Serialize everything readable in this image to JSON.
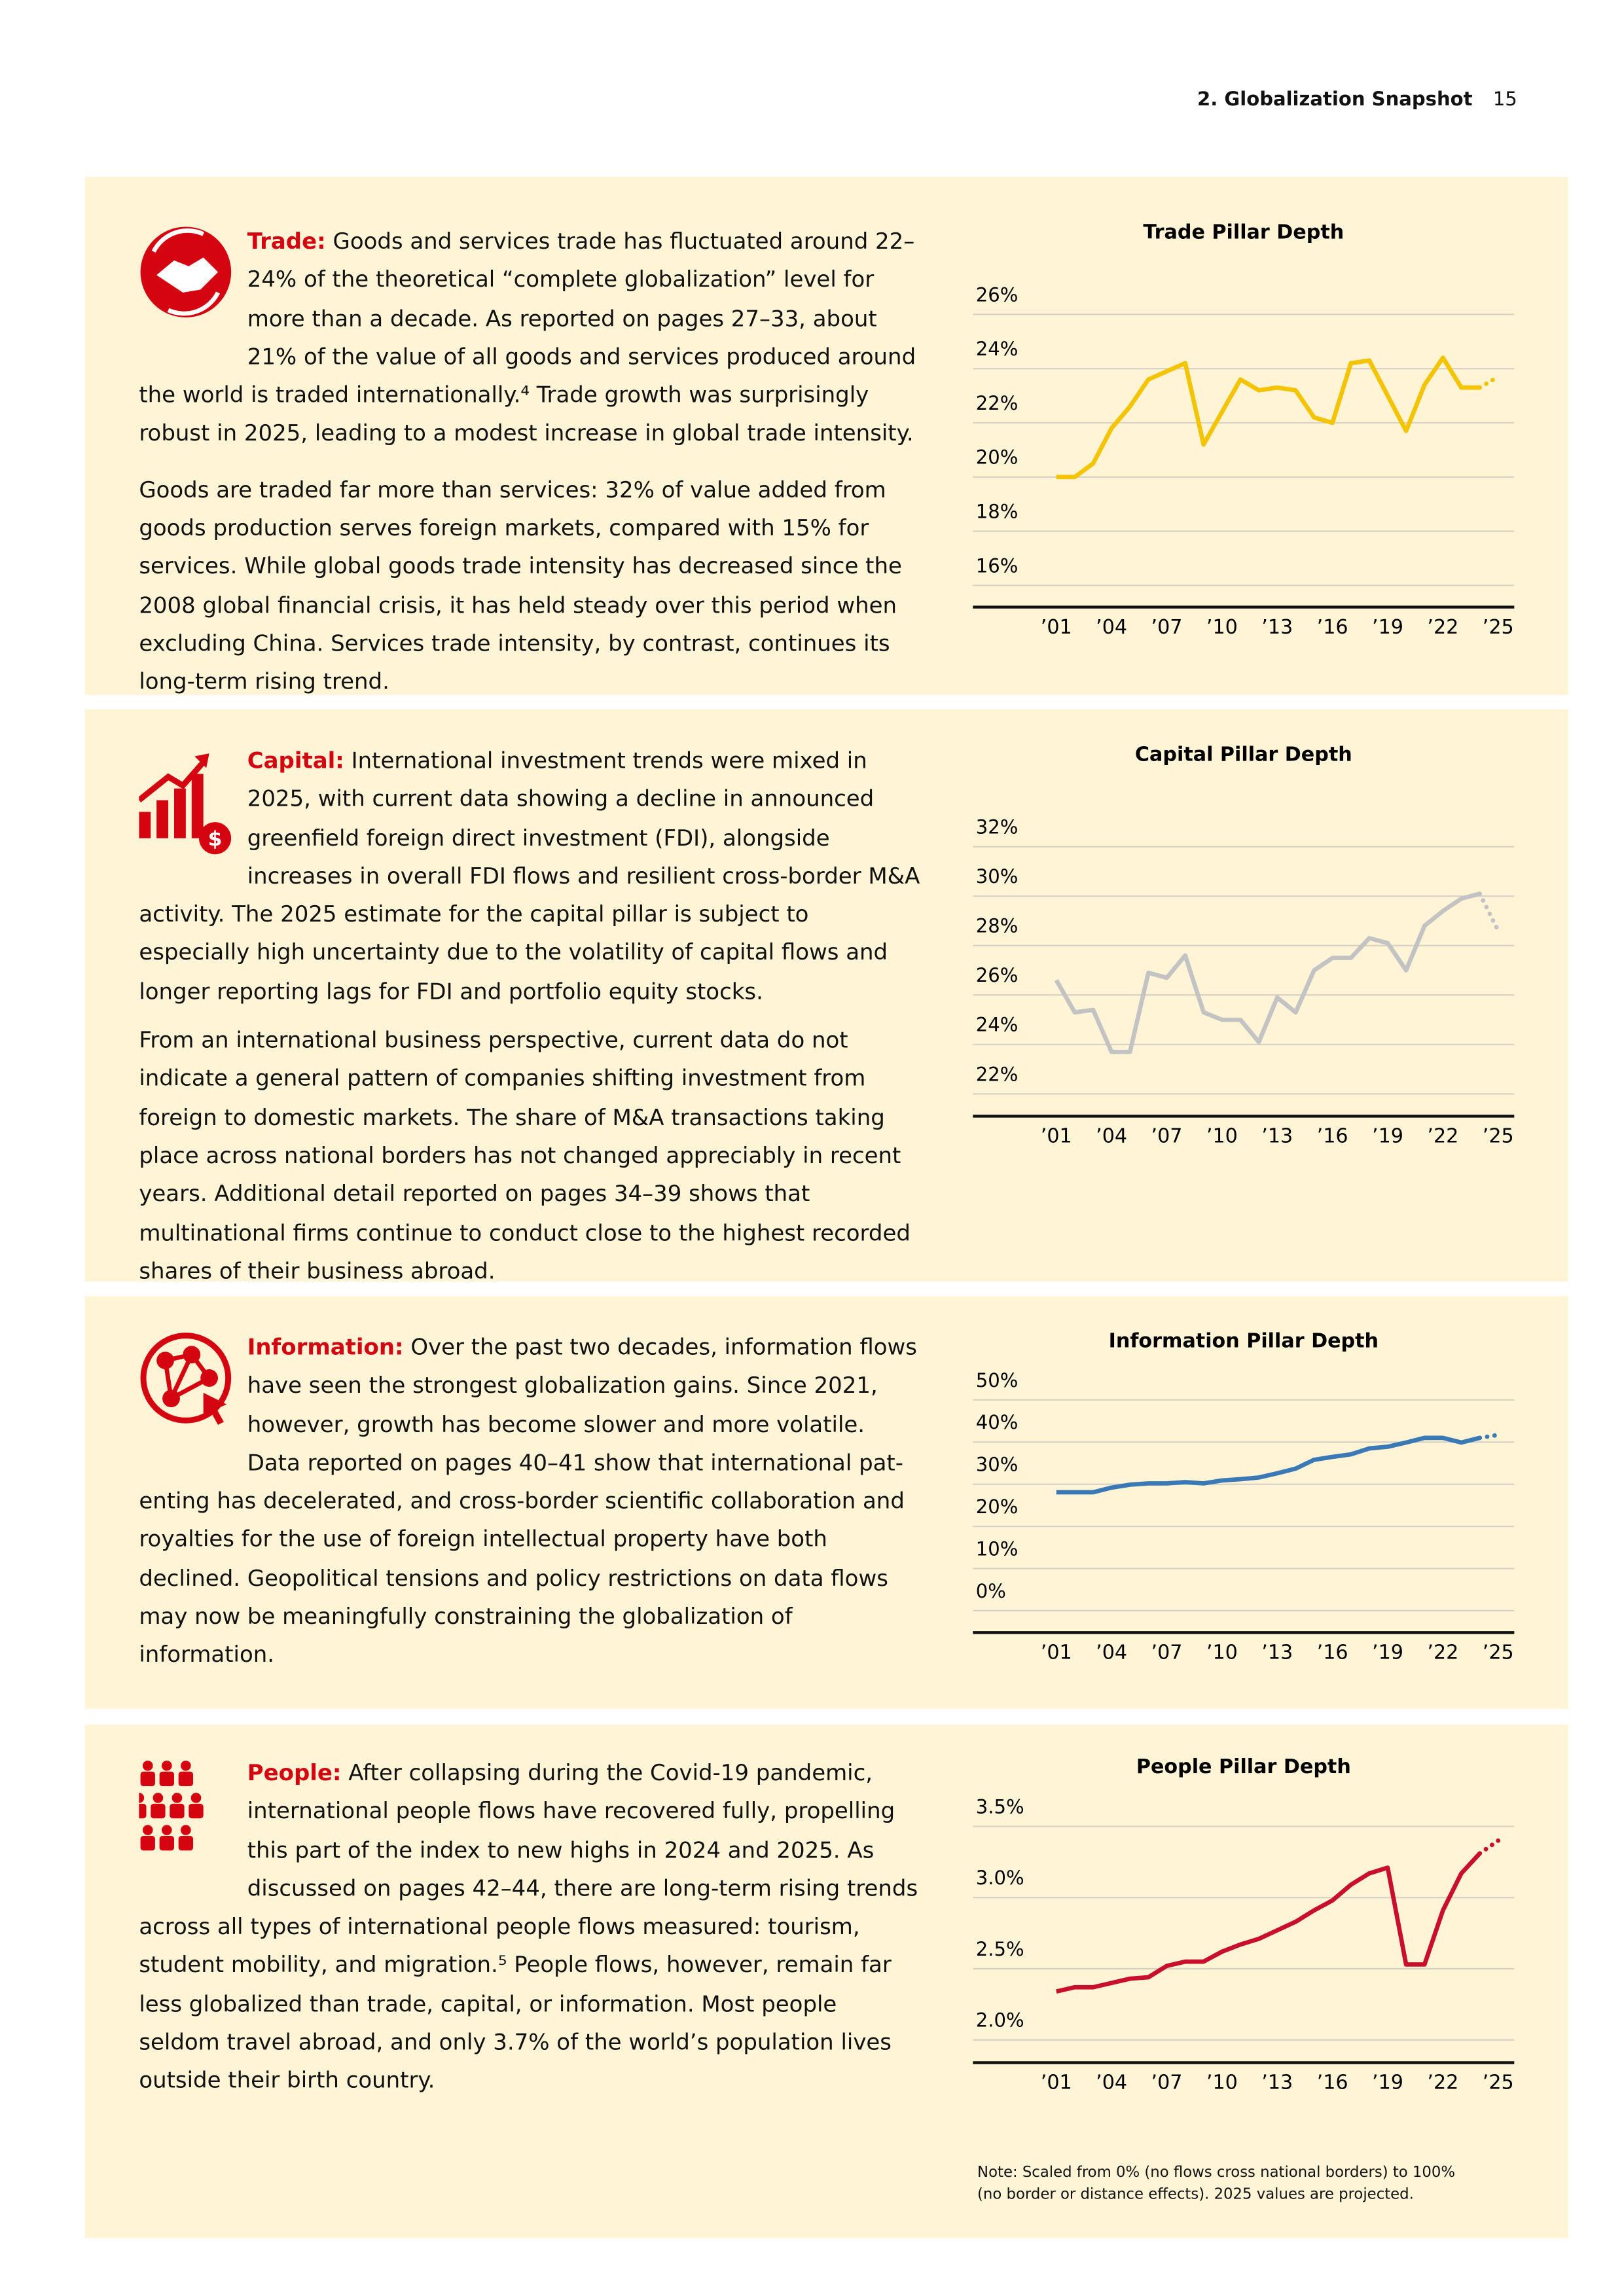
{
  "header": {
    "section": "2. Globalization Snapshot",
    "page": "15"
  },
  "sections": [
    {
      "label": "Trade:",
      "paragraphs": [
        "Goods and services trade has fluctuated around 22–24% of the theoretical “complete globalization” level for more than a decade. As reported on pages 27–33, about 21% of the value of all goods and services produced around the world is traded internationally.⁴ Trade growth was surprisingly robust in 2025, leading to a modest increase in global trade intensity.",
        "Goods are traded far more than services: 32% of value added from goods production serves foreign markets, compared with 15% for services. While global goods trade intensity has decreased since the 2008 global financial crisis, it has held steady over this period when excluding China. Services trade intensity, by contrast, continues its long-term rising trend."
      ]
    },
    {
      "label": "Capital:",
      "paragraphs": [
        "International investment trends were mixed in 2025, with current data showing a decline in announced greenfield foreign direct investment (FDI), alongside increases in overall FDI flows and resilient cross-border M&A activity. The 2025 estimate for the capital pillar is subject to especially high uncertainty due to the volatility of capital flows and longer reporting lags for FDI and portfolio equity stocks.",
        "From an international business perspective, current data do not indicate a general pattern of companies shifting investment from foreign to domestic markets. The share of M&A transactions taking place across national borders has not changed appreciably in recent years. Additional detail reported on pages 34–39 shows that multinational firms continue to conduct close to the highest recorded shares of their business abroad."
      ]
    },
    {
      "label": "Information:",
      "paragraphs": [
        "Over the past two decades, information flows have seen the strongest globalization gains. Since 2021, how­ever, growth has become slower and more volatile. Data reported on pages 40–41 show that international pat­enting has decelerated, and cross-border scientific collaboration and royalties for the use of foreign intellectual property have both declined. Geopolitical tensions and policy restrictions on data flows may now be meaningfully constraining the globalization of information."
      ]
    },
    {
      "label": "People:",
      "paragraphs": [
        "After collapsing during the Covid-19 pandemic, inter­national people flows have recovered fully, propelling this part of the index to new highs in 2024 and 2025. As discussed on pages 42–44, there are long-term rising trends across all types of international people flows measured: tourism, student mobility, and migration.⁵ People flows, however, remain far less globalized than trade, capital, or information. Most people seldom travel abroad, and only 3.7% of the world’s population lives outside their birth country."
      ]
    }
  ],
  "chart_data": [
    {
      "type": "line",
      "title": "Trade Pillar Depth",
      "categories": [
        "’01",
        null,
        null,
        "’04",
        null,
        null,
        "’07",
        null,
        null,
        "’10",
        null,
        null,
        "’13",
        null,
        null,
        "’16",
        null,
        null,
        "’19",
        null,
        null,
        "’22",
        null,
        null,
        "’25"
      ],
      "series": [
        {
          "color": "#f5c400",
          "values": [
            20.0,
            20.0,
            20.5,
            21.8,
            22.6,
            23.6,
            23.9,
            24.2,
            21.2,
            22.4,
            23.6,
            23.2,
            23.3,
            23.2,
            22.2,
            22.0,
            24.2,
            24.3,
            23.0,
            21.7,
            23.4,
            24.4,
            23.3,
            23.3,
            23.7
          ]
        }
      ],
      "projected_last": true,
      "grid": true,
      "ylim": [
        15.2,
        27.4
      ],
      "yticks": [
        {
          "value": 16,
          "label": "16%"
        },
        {
          "value": 18,
          "label": "18%"
        },
        {
          "value": 20,
          "label": "20%"
        },
        {
          "value": 22,
          "label": "22%"
        },
        {
          "value": 24,
          "label": "24%"
        },
        {
          "value": 26,
          "label": "26%"
        }
      ]
    },
    {
      "type": "line",
      "title": "Capital Pillar Depth",
      "categories": [
        "’01",
        null,
        null,
        "’04",
        null,
        null,
        "’07",
        null,
        null,
        "’10",
        null,
        null,
        "’13",
        null,
        null,
        "’16",
        null,
        null,
        "’19",
        null,
        null,
        "’22",
        null,
        null,
        "’25"
      ],
      "series": [
        {
          "color": "#c3c3c3",
          "values": [
            26.6,
            25.3,
            25.4,
            23.7,
            23.7,
            26.9,
            26.7,
            27.6,
            25.3,
            25.0,
            25.0,
            24.1,
            25.9,
            25.3,
            27.0,
            27.5,
            27.5,
            28.3,
            28.1,
            27.0,
            28.8,
            29.4,
            29.9,
            30.1,
            28.6
          ]
        }
      ],
      "projected_last": true,
      "grid": true,
      "ylim": [
        21.1,
        34.0
      ],
      "yticks": [
        {
          "value": 22,
          "label": "22%"
        },
        {
          "value": 24,
          "label": "24%"
        },
        {
          "value": 26,
          "label": "26%"
        },
        {
          "value": 28,
          "label": "28%"
        },
        {
          "value": 30,
          "label": "30%"
        },
        {
          "value": 32,
          "label": "32%"
        }
      ]
    },
    {
      "type": "line",
      "title": "Information Pillar Depth",
      "categories": [
        "’01",
        null,
        null,
        "’04",
        null,
        null,
        "’07",
        null,
        null,
        "’10",
        null,
        null,
        "’13",
        null,
        null,
        "’16",
        null,
        null,
        "’19",
        null,
        null,
        "’22",
        null,
        null,
        "’25"
      ],
      "series": [
        {
          "color": "#3a78b6",
          "values": [
            28.1,
            28.1,
            28.1,
            29.2,
            29.9,
            30.2,
            30.2,
            30.5,
            30.2,
            30.9,
            31.2,
            31.6,
            32.6,
            33.7,
            35.8,
            36.5,
            37.1,
            38.5,
            38.9,
            39.9,
            41.0,
            41.0,
            39.9,
            41.0,
            41.7
          ]
        }
      ],
      "projected_last": true,
      "grid": true,
      "ylim": [
        -5.2,
        59.3
      ],
      "yticks": [
        {
          "value": 0,
          "label": "0%"
        },
        {
          "value": 10,
          "label": "10%"
        },
        {
          "value": 20,
          "label": "20%"
        },
        {
          "value": 30,
          "label": "30%"
        },
        {
          "value": 40,
          "label": "40%"
        },
        {
          "value": 50,
          "label": "50%"
        }
      ]
    },
    {
      "type": "line",
      "title": "People Pillar Depth",
      "categories": [
        "’01",
        null,
        null,
        "’04",
        null,
        null,
        "’07",
        null,
        null,
        "’10",
        null,
        null,
        "’13",
        null,
        null,
        "’16",
        null,
        null,
        "’19",
        null,
        null,
        "’22",
        null,
        null,
        "’25"
      ],
      "series": [
        {
          "color": "#c8102e",
          "values": [
            2.34,
            2.37,
            2.37,
            2.4,
            2.43,
            2.44,
            2.52,
            2.55,
            2.55,
            2.62,
            2.67,
            2.71,
            2.77,
            2.83,
            2.91,
            2.98,
            3.09,
            3.17,
            3.21,
            2.53,
            2.53,
            2.91,
            3.17,
            3.31,
            3.4
          ]
        }
      ],
      "projected_last": true,
      "grid": true,
      "ylim": [
        1.84,
        3.87
      ],
      "yticks": [
        {
          "value": 2.0,
          "label": "2.0%"
        },
        {
          "value": 2.5,
          "label": "2.5%"
        },
        {
          "value": 3.0,
          "label": "3.0%"
        },
        {
          "value": 3.5,
          "label": "3.5%"
        }
      ]
    }
  ],
  "note": "Note: Scaled from 0% (no flows cross national borders) to 100% (no border or distance effects). 2025 values are projected."
}
